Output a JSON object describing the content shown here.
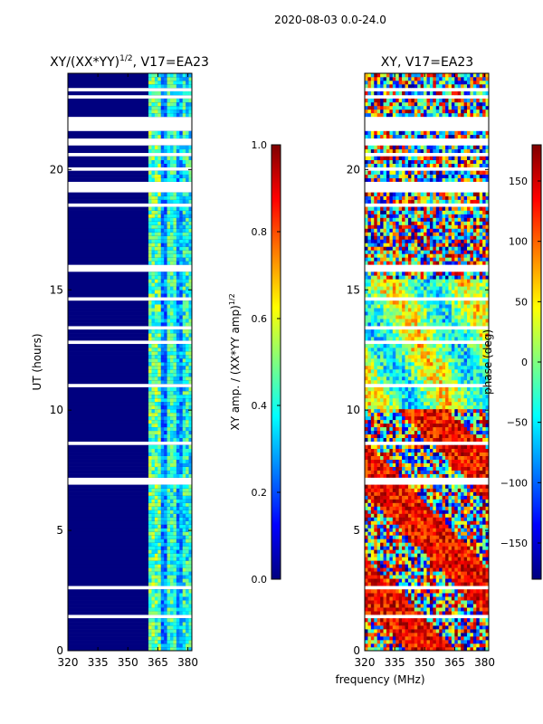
{
  "suptitle": "2020-08-03 0.0-24.0",
  "chart_data": [
    {
      "type": "heatmap",
      "title": "XY/(XX*YY)^1/2, V17=EA23",
      "title_parts": {
        "base": "XY/(XX*YY)",
        "sup": "1/2",
        "tail": ", V17=EA23"
      },
      "xlabel": "",
      "ylabel": "UT (hours)",
      "xlim": [
        320,
        382
      ],
      "ylim": [
        0,
        24
      ],
      "xticks": [
        "320",
        "335",
        "350",
        "365",
        "380"
      ],
      "yticks": [
        "0",
        "5",
        "10",
        "15",
        "20"
      ],
      "colormap": "jet",
      "colorbar": {
        "label": "XY amp. / (XX*YY amp)^1/2",
        "label_parts": {
          "base": "XY amp. / (XX*YY amp)",
          "sup": "1/2"
        },
        "range": [
          0.0,
          1.0
        ],
        "ticks": [
          "0.0",
          "0.2",
          "0.4",
          "0.6",
          "0.8",
          "1.0"
        ]
      },
      "data_summary": "Mostly near 0 (dark blue) below 360 MHz; values about 0.3-0.6 in bands near 362-366, 370-374 and 377-381 MHz; white horizontal gaps where data are flagged."
    },
    {
      "type": "heatmap",
      "title": "XY, V17=EA23",
      "xlabel": "frequency (MHz)",
      "ylabel": "",
      "xlim": [
        320,
        382
      ],
      "ylim": [
        0,
        24
      ],
      "xticks": [
        "320",
        "335",
        "350",
        "365",
        "380"
      ],
      "yticks": [
        "0",
        "5",
        "10",
        "15",
        "20"
      ],
      "colormap": "jet",
      "colorbar": {
        "label": "phase (deg)",
        "range": [
          -180,
          180
        ],
        "ticks": [
          "−150",
          "−100",
          "−50",
          "0",
          "50",
          "100",
          "150"
        ]
      },
      "data_summary": "Phase spans the full -180 to 180 deg range; mostly green/yellow (near 0-50 deg) between 10 and 15 h, red/yellow and blue mixtures below 10 h; white horizontal gaps where data are flagged."
    }
  ],
  "colors": {
    "jet": [
      "#00007f",
      "#0000ff",
      "#007fff",
      "#00ffff",
      "#7fff7f",
      "#ffff00",
      "#ff7f00",
      "#ff0000",
      "#7f0000"
    ]
  }
}
